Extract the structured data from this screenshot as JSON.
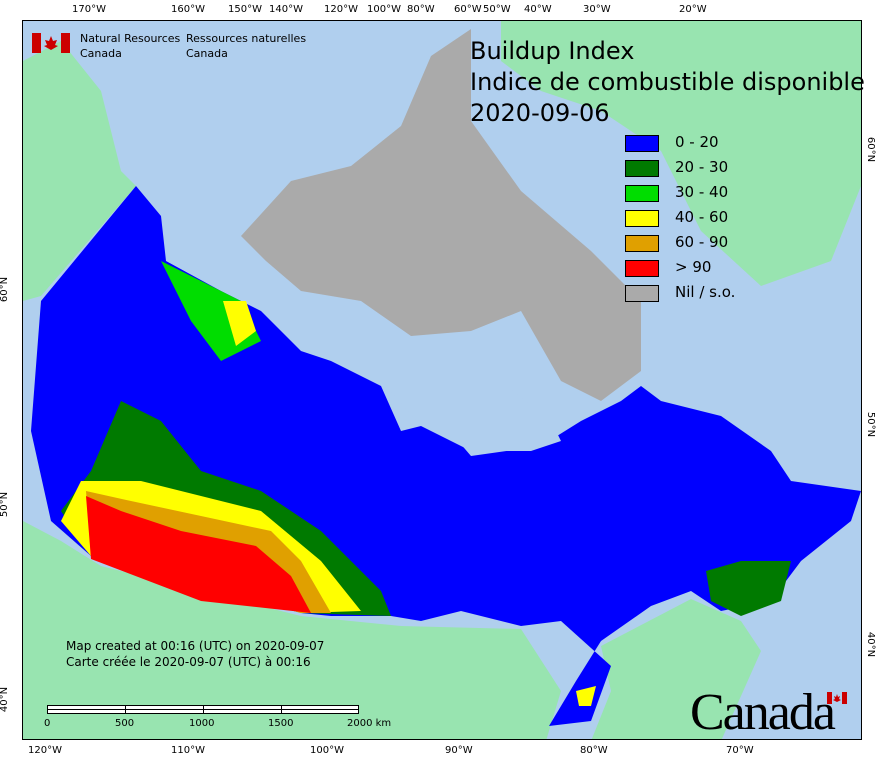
{
  "title": {
    "line1": "Buildup Index",
    "line2": "Indice de combustible disponible",
    "date": "2020-09-06"
  },
  "agency": {
    "en_line1": "Natural Resources",
    "en_line2": "Canada",
    "fr_line1": "Ressources naturelles",
    "fr_line2": "Canada"
  },
  "legend": [
    {
      "label": "0 - 20",
      "color": "#0000ff"
    },
    {
      "label": "20 - 30",
      "color": "#007a00"
    },
    {
      "label": "30 - 40",
      "color": "#00dd00"
    },
    {
      "label": "40 - 60",
      "color": "#ffff00"
    },
    {
      "label": "60 - 90",
      "color": "#e0a000"
    },
    {
      "label": "> 90",
      "color": "#ff0000"
    },
    {
      "label": "Nil / s.o.",
      "color": "#aaaaaa"
    }
  ],
  "created": {
    "en": "Map created at 00:16 (UTC) on 2020-09-07",
    "fr": "Carte créée le 2020-09-07 (UTC) à 00:16"
  },
  "scalebar": {
    "labels": [
      "0",
      "500",
      "1000",
      "1500",
      "2000 km"
    ]
  },
  "axes": {
    "top": [
      "170°W",
      "160°W",
      "150°W",
      "140°W",
      "120°W",
      "100°W",
      "80°W",
      "60°W",
      "50°W",
      "40°W",
      "30°W",
      "20°W"
    ],
    "bottom": [
      "120°W",
      "110°W",
      "100°W",
      "90°W",
      "80°W",
      "70°W"
    ],
    "left": [
      "60°N",
      "50°N",
      "40°N"
    ],
    "right": [
      "60°N",
      "50°N",
      "40°N"
    ]
  },
  "wordmark": "Canada",
  "colors": {
    "ocean": "#b0cfee",
    "foreign_land": "#98e4b0",
    "nodata": "#aaaaaa"
  }
}
